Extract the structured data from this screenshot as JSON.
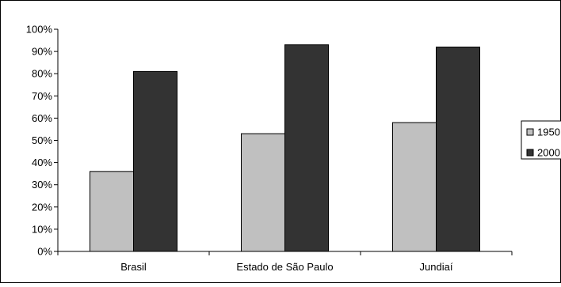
{
  "chart_data": {
    "type": "bar",
    "categories": [
      "Brasil",
      "Estado de São Paulo",
      "Jundiaí"
    ],
    "series": [
      {
        "name": "1950",
        "values": [
          36,
          53,
          58
        ],
        "color": "#c0c0c0"
      },
      {
        "name": "2000",
        "values": [
          81,
          93,
          92
        ],
        "color": "#333333"
      }
    ],
    "y_ticks": [
      "0%",
      "10%",
      "20%",
      "30%",
      "40%",
      "50%",
      "60%",
      "70%",
      "80%",
      "90%",
      "100%"
    ],
    "ylim": [
      0,
      100
    ],
    "grid": false,
    "legend_position": "right",
    "title": "",
    "xlabel": "",
    "ylabel": ""
  }
}
